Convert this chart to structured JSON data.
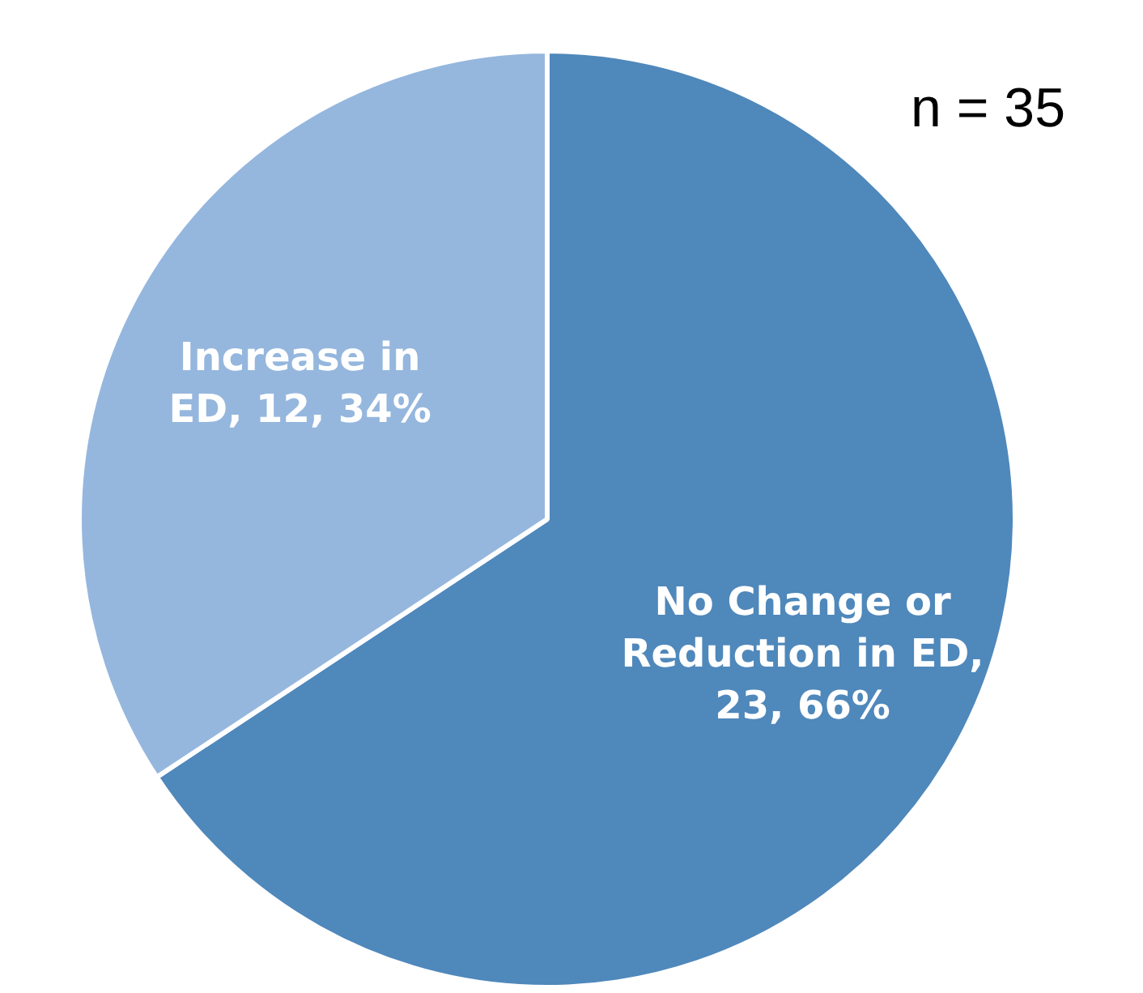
{
  "chart_data": {
    "type": "pie",
    "categories": [
      "No Change or Reduction in ED",
      "Increase in ED"
    ],
    "values": [
      23,
      12
    ],
    "colors": [
      "#4f88bb",
      "#95b7de"
    ],
    "value_labels": [
      ", 23, 66%",
      ", 12, 34%"
    ],
    "annotations": [
      "n = 35"
    ],
    "legend": false
  }
}
